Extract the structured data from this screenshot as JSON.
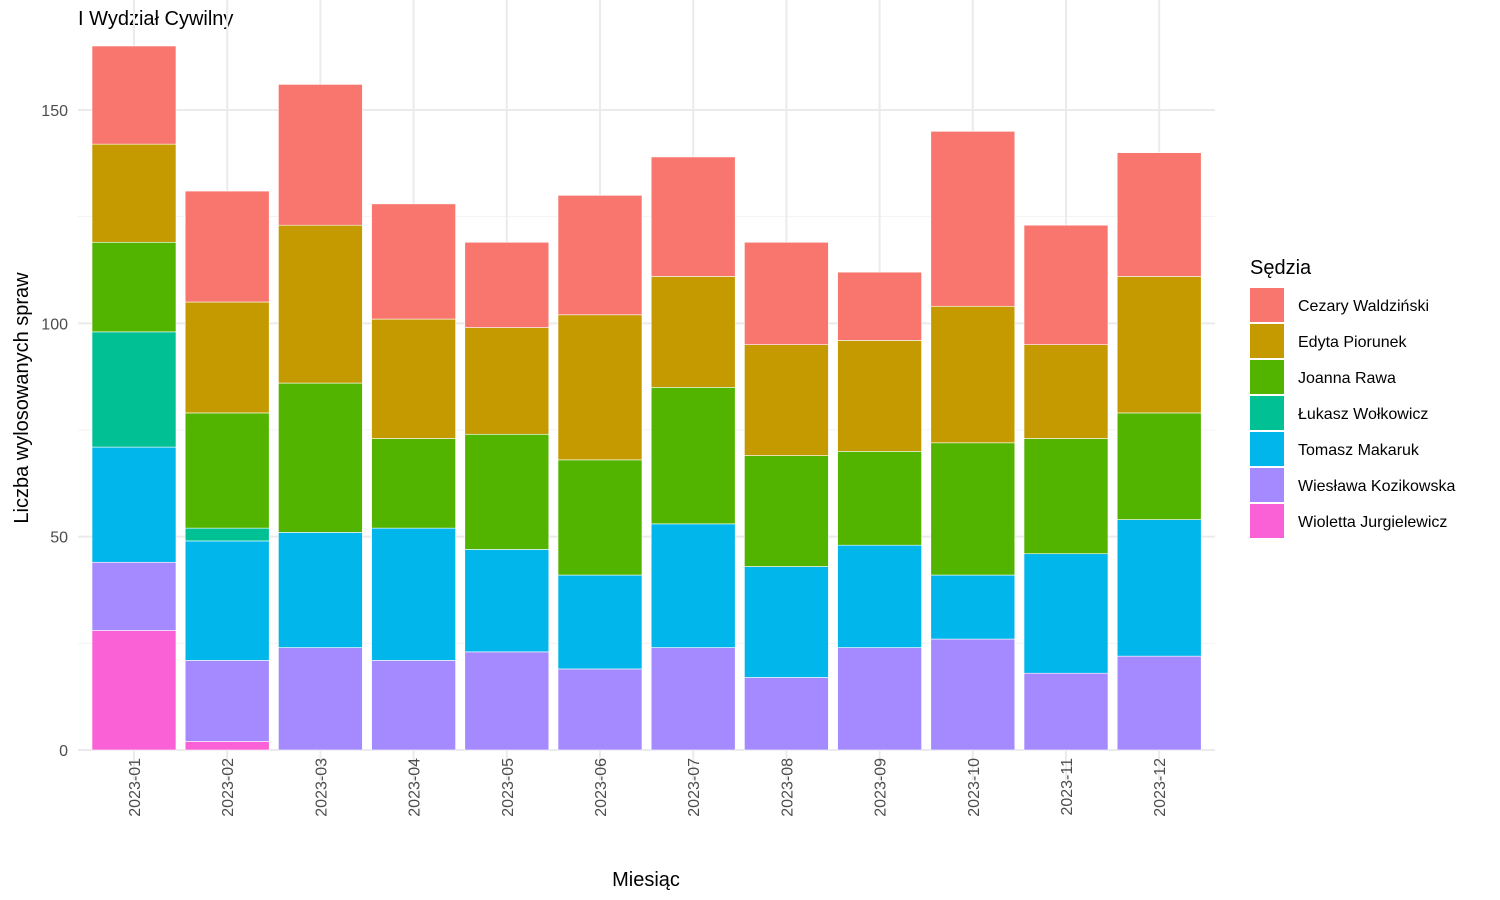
{
  "chart_data": {
    "type": "bar",
    "stacked": true,
    "title": "I Wydział Cywilny",
    "xlabel": "Miesiąc",
    "ylabel": "Liczba wylosowanych spraw",
    "ylim": [
      0,
      165
    ],
    "yticks": [
      0,
      50,
      100,
      150
    ],
    "grid": true,
    "legend": {
      "title": "Sędzia",
      "position": "right"
    },
    "categories": [
      "2023-01",
      "2023-02",
      "2023-03",
      "2023-04",
      "2023-05",
      "2023-06",
      "2023-07",
      "2023-08",
      "2023-09",
      "2023-10",
      "2023-11",
      "2023-12"
    ],
    "series": [
      {
        "name": "Wioletta Jurgielewicz",
        "color": "#FB61D7",
        "values": [
          28,
          2,
          0,
          0,
          0,
          0,
          0,
          0,
          0,
          0,
          0,
          0
        ]
      },
      {
        "name": "Wiesława Kozikowska",
        "color": "#A58AFF",
        "values": [
          16,
          19,
          24,
          21,
          23,
          19,
          24,
          17,
          24,
          26,
          18,
          22
        ]
      },
      {
        "name": "Tomasz Makaruk",
        "color": "#00B6EB",
        "values": [
          27,
          28,
          27,
          31,
          24,
          22,
          29,
          26,
          24,
          15,
          28,
          32
        ]
      },
      {
        "name": "Łukasz Wołkowicz",
        "color": "#00C094",
        "values": [
          27,
          3,
          0,
          0,
          0,
          0,
          0,
          0,
          0,
          0,
          0,
          0
        ]
      },
      {
        "name": "Joanna Rawa",
        "color": "#53B400",
        "values": [
          21,
          27,
          35,
          21,
          27,
          27,
          32,
          26,
          22,
          31,
          27,
          25
        ]
      },
      {
        "name": "Edyta Piorunek",
        "color": "#C49A00",
        "values": [
          23,
          26,
          37,
          28,
          25,
          34,
          26,
          26,
          26,
          32,
          22,
          32
        ]
      },
      {
        "name": "Cezary Waldziński",
        "color": "#F8766D",
        "values": [
          23,
          26,
          33,
          27,
          20,
          28,
          28,
          24,
          16,
          41,
          28,
          29
        ]
      }
    ],
    "legend_order": [
      "Cezary Waldziński",
      "Edyta Piorunek",
      "Joanna Rawa",
      "Łukasz Wołkowicz",
      "Tomasz Makaruk",
      "Wiesława Kozikowska",
      "Wioletta Jurgielewicz"
    ]
  }
}
